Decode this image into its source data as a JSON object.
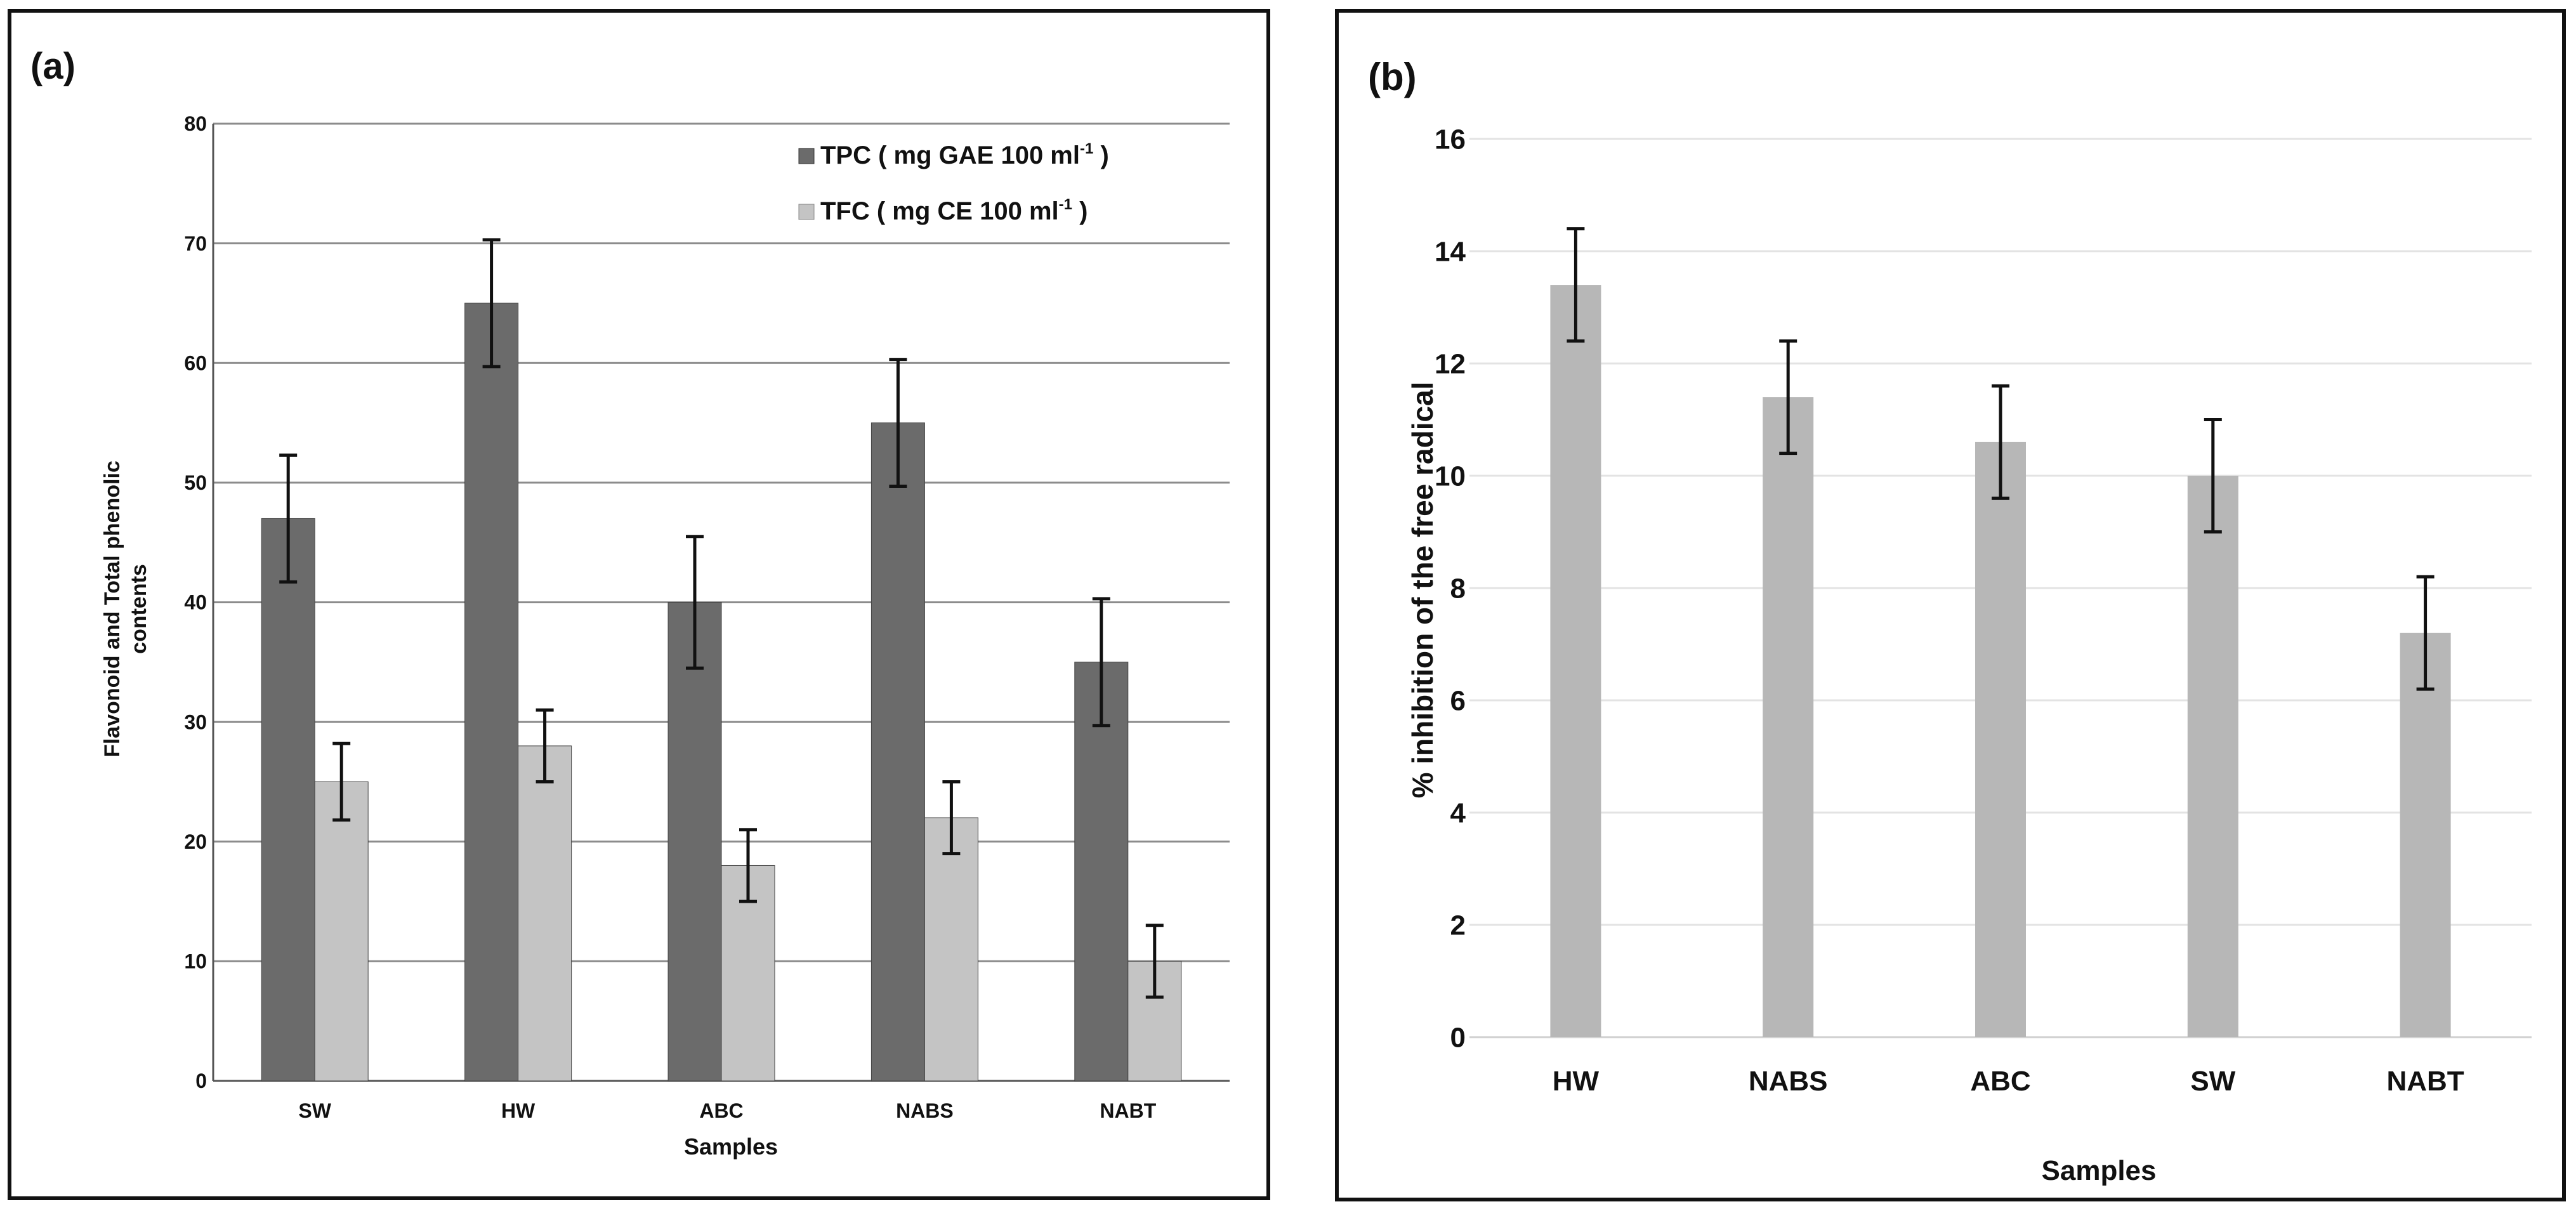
{
  "chart_data": [
    {
      "panel_label": "(a)",
      "type": "bar",
      "categories": [
        "SW",
        "HW",
        "ABC",
        "NABS",
        "NABT"
      ],
      "series": [
        {
          "name": "TPC",
          "legend_label": "TPC ( mg GAE 100 ml",
          "legend_sup": "-1",
          "color": "#6b6b6b",
          "values": [
            47,
            65,
            40,
            55,
            35
          ],
          "errors": [
            5.3,
            5.3,
            5.5,
            5.3,
            5.3
          ]
        },
        {
          "name": "TFC",
          "legend_label": "TFC ( mg CE 100 ml",
          "legend_sup": "-1",
          "color": "#c4c4c4",
          "values": [
            25,
            28,
            18,
            22,
            10
          ],
          "errors": [
            3.2,
            3.0,
            3.0,
            3.0,
            3.0
          ]
        }
      ],
      "title": "",
      "xlabel": "Samples",
      "ylabel_line1": "Flavonoid and Total phenolic",
      "ylabel_line2": "contents",
      "ylim": [
        0,
        80
      ],
      "yticks": [
        0,
        10,
        20,
        30,
        40,
        50,
        60,
        70,
        80
      ],
      "grid": true,
      "legend_position": "top-right"
    },
    {
      "panel_label": "(b)",
      "type": "bar",
      "categories": [
        "HW",
        "NABS",
        "ABC",
        "SW",
        "NABT"
      ],
      "series": [
        {
          "name": "% inhibition",
          "color": "#b7b7b7",
          "values": [
            13.4,
            11.4,
            10.6,
            10.0,
            7.2
          ],
          "errors": [
            1.0,
            1.0,
            1.0,
            1.0,
            1.0
          ]
        }
      ],
      "title": "",
      "xlabel": "Samples",
      "ylabel": "% inhibition of the free radical",
      "ylim": [
        0,
        16
      ],
      "yticks": [
        0,
        2,
        4,
        6,
        8,
        10,
        12,
        14,
        16
      ],
      "grid": true
    }
  ]
}
